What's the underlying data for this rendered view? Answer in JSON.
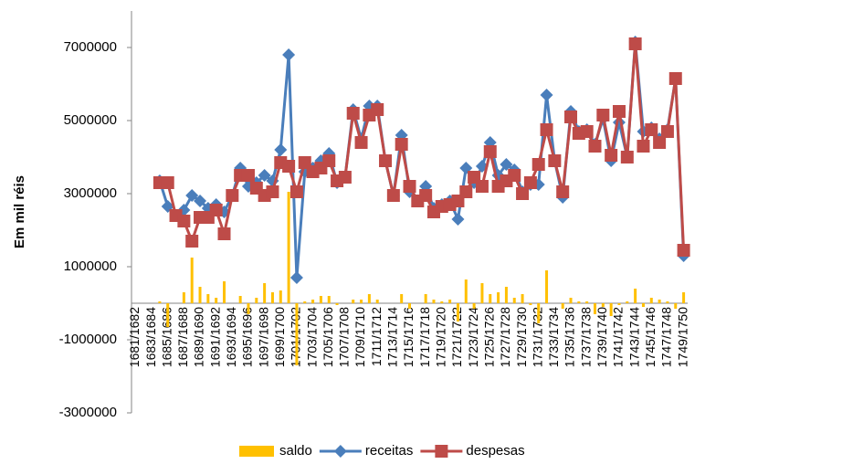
{
  "chart_data": {
    "type": "bar-line",
    "y_label": "Em mil réis",
    "categories": [
      "1681/1682",
      null,
      "1683/1684",
      null,
      "1685/1686",
      null,
      "1687/1688",
      null,
      "1689/1690",
      null,
      "1691/1692",
      null,
      "1693/1694",
      null,
      "1695/1696",
      null,
      "1697/1698",
      null,
      "1699/1700",
      null,
      "1701/1702",
      null,
      "1703/1704",
      null,
      "1705/1706",
      null,
      "1707/1708",
      null,
      "1709/1710",
      null,
      "1711/1712",
      null,
      "1713/1714",
      null,
      "1715/1716",
      null,
      "1717/1718",
      null,
      "1719/1720",
      null,
      "1721/1722",
      null,
      "1723/1724",
      null,
      "1725/1726",
      null,
      "1727/1728",
      null,
      "1729/1730",
      null,
      "1731/1732",
      null,
      "1733/1734",
      null,
      "1735/1736",
      null,
      "1737/1738",
      null,
      "1739/1740",
      null,
      "1741/1742",
      null,
      "1743/1744",
      null,
      "1745/1746",
      null,
      "1747/1748",
      null,
      "1749/1750"
    ],
    "series": [
      {
        "name": "saldo",
        "type": "bar",
        "color": "#ffc000",
        "values": [
          null,
          null,
          null,
          50000,
          -650000,
          0,
          300000,
          1250000,
          450000,
          250000,
          150000,
          600000,
          0,
          200000,
          -300000,
          150000,
          550000,
          300000,
          350000,
          3050000,
          -1700000,
          50000,
          100000,
          200000,
          200000,
          -50000,
          0,
          100000,
          100000,
          250000,
          100000,
          0,
          0,
          250000,
          -150000,
          0,
          250000,
          100000,
          50000,
          100000,
          -500000,
          650000,
          -150000,
          550000,
          250000,
          300000,
          450000,
          150000,
          250000,
          -50000,
          -550000,
          900000,
          0,
          -150000,
          150000,
          50000,
          50000,
          -300000,
          -100000,
          -350000,
          -50000,
          50000,
          400000,
          -100000,
          150000,
          100000,
          50000,
          -150000,
          300000
        ]
      },
      {
        "name": "receitas",
        "type": "line",
        "marker": "diamond",
        "color": "#4a7ebb",
        "values": [
          null,
          null,
          null,
          3350000,
          2650000,
          2400000,
          2550000,
          2950000,
          2800000,
          2600000,
          2700000,
          2500000,
          2950000,
          3700000,
          3200000,
          3300000,
          3500000,
          3350000,
          4200000,
          6800000,
          700000,
          3600000,
          3700000,
          3900000,
          4100000,
          3300000,
          3450000,
          5300000,
          4500000,
          5400000,
          5400000,
          3900000,
          2950000,
          4600000,
          3050000,
          2800000,
          3200000,
          2600000,
          2700000,
          2800000,
          2300000,
          3700000,
          3300000,
          3750000,
          4400000,
          3500000,
          3800000,
          3650000,
          3050000,
          3250000,
          3250000,
          5700000,
          3900000,
          2900000,
          5250000,
          4700000,
          4750000,
          4350000,
          5050000,
          3900000,
          4950000,
          4000000,
          7150000,
          4700000,
          4800000,
          4500000,
          4750000,
          6150000,
          1300000
        ]
      },
      {
        "name": "despesas",
        "type": "line",
        "marker": "square",
        "color": "#be4b48",
        "values": [
          null,
          null,
          null,
          3300000,
          3300000,
          2400000,
          2250000,
          1700000,
          2350000,
          2350000,
          2550000,
          1900000,
          2950000,
          3500000,
          3500000,
          3150000,
          2950000,
          3050000,
          3850000,
          3750000,
          3050000,
          3850000,
          3600000,
          3700000,
          3900000,
          3350000,
          3450000,
          5200000,
          4400000,
          5150000,
          5300000,
          3900000,
          2950000,
          4350000,
          3200000,
          2800000,
          2950000,
          2500000,
          2650000,
          2700000,
          2800000,
          3050000,
          3450000,
          3200000,
          4150000,
          3200000,
          3350000,
          3500000,
          3000000,
          3300000,
          3800000,
          4750000,
          3900000,
          3050000,
          5100000,
          4650000,
          4700000,
          4300000,
          5150000,
          4050000,
          5250000,
          4000000,
          7100000,
          4300000,
          4750000,
          4400000,
          4700000,
          6150000,
          1450000
        ]
      }
    ],
    "ylim": [
      -3000000,
      8000000
    ],
    "yticks": [
      -3000000,
      -1000000,
      1000000,
      3000000,
      5000000,
      7000000
    ],
    "grid": false,
    "legend": "bottom"
  }
}
